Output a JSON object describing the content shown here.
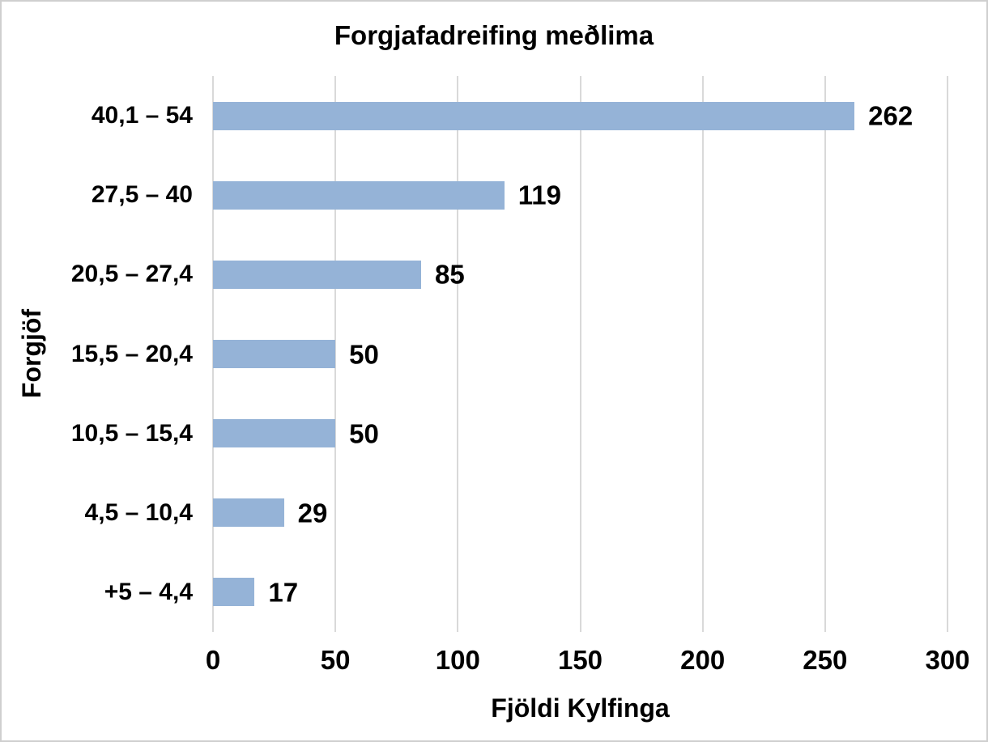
{
  "chart_data": {
    "type": "bar",
    "orientation": "horizontal",
    "title": "Forgjafadreifing meðlima",
    "xlabel": "Fjöldi Kylfinga",
    "ylabel": "Forgjöf",
    "categories": [
      "40,1 – 54",
      "27,5 – 40",
      "20,5 – 27,4",
      "15,5 – 20,4",
      "10,5 – 15,4",
      "4,5 – 10,4",
      "+5 – 4,4"
    ],
    "values": [
      262,
      119,
      85,
      50,
      50,
      29,
      17
    ],
    "data_labels": [
      "262",
      "119",
      "85",
      "50",
      "50",
      "29",
      "17"
    ],
    "xlim": [
      0,
      300
    ],
    "xticks": [
      "0",
      "50",
      "100",
      "150",
      "200",
      "250",
      "300"
    ],
    "grid": "vertical",
    "legend": "none",
    "colors": {
      "bar_fill": "#95B3D7",
      "gridline": "#D9D9D9",
      "text": "#000000",
      "background": "#FFFFFF",
      "frame_border": "#CFCFCF"
    }
  }
}
